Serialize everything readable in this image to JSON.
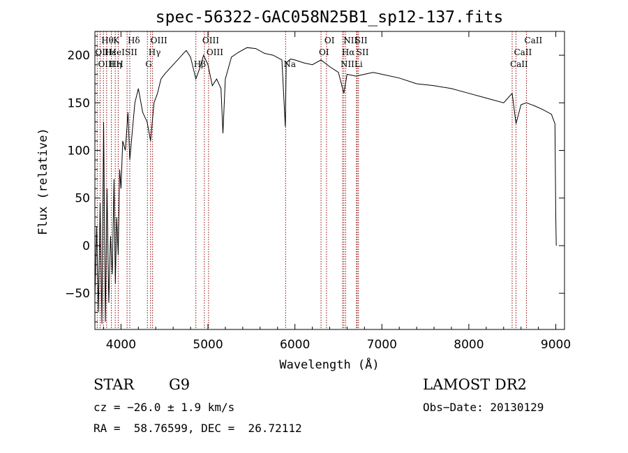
{
  "chart_data": {
    "type": "line",
    "title": "spec-56322-GAC058N25B1_sp12-137.fits",
    "xlabel": "Wavelength (Å)",
    "ylabel": "Flux (relative)",
    "xlim": [
      3700,
      9100
    ],
    "ylim": [
      -88,
      225
    ],
    "xticks": [
      4000,
      5000,
      6000,
      7000,
      8000,
      9000
    ],
    "yticks": [
      -50,
      0,
      50,
      100,
      150,
      200
    ],
    "grid": false,
    "legend": "none",
    "line_color": "#000000",
    "marker_color": "#8b0000",
    "series": [
      {
        "x": [
          3700,
          3720,
          3740,
          3760,
          3780,
          3800,
          3820,
          3840,
          3860,
          3880,
          3900,
          3920,
          3935,
          3950,
          3968,
          3985,
          4000,
          4020,
          4050,
          4080,
          4101,
          4130,
          4160,
          4200,
          4250,
          4300,
          4340,
          4380,
          4420,
          4460,
          4500,
          4550,
          4600,
          4650,
          4700,
          4750,
          4800,
          4861,
          4900,
          4950,
          5000,
          5050,
          5100,
          5150,
          5172,
          5200,
          5270,
          5350,
          5450,
          5550,
          5650,
          5750,
          5850,
          5890,
          5900,
          5950,
          6000,
          6100,
          6200,
          6300,
          6400,
          6500,
          6563,
          6600,
          6700,
          6800,
          6900,
          7000,
          7200,
          7400,
          7600,
          7800,
          8000,
          8200,
          8400,
          8498,
          8542,
          8600,
          8662,
          8750,
          8850,
          8950,
          8990,
          9000,
          9005
        ],
        "y": [
          -55,
          20,
          -70,
          45,
          -82,
          130,
          -80,
          60,
          -60,
          10,
          -30,
          70,
          -40,
          30,
          -10,
          80,
          60,
          110,
          100,
          140,
          90,
          120,
          150,
          165,
          140,
          130,
          110,
          150,
          160,
          175,
          180,
          185,
          190,
          195,
          200,
          205,
          198,
          175,
          185,
          200,
          190,
          168,
          175,
          165,
          118,
          175,
          198,
          203,
          208,
          207,
          202,
          200,
          195,
          125,
          192,
          196,
          195,
          192,
          190,
          195,
          188,
          182,
          160,
          180,
          178,
          180,
          182,
          180,
          176,
          170,
          168,
          165,
          160,
          155,
          150,
          160,
          128,
          148,
          150,
          147,
          143,
          138,
          128,
          30,
          0
        ]
      }
    ],
    "lines": [
      {
        "label": "Hθ",
        "wavelength": 3798,
        "row": 1
      },
      {
        "label": "OII",
        "wavelength": 3727,
        "row": 2
      },
      {
        "label": "OIII",
        "wavelength": 3760,
        "row": 3
      },
      {
        "label": "Hε",
        "wavelength": 3835,
        "row": 2
      },
      {
        "label": "Hη",
        "wavelength": 3889,
        "row": 3
      },
      {
        "label": "K",
        "wavelength": 3934,
        "row": 1
      },
      {
        "label": "HeI",
        "wavelength": 3889,
        "row": 2
      },
      {
        "label": "SII",
        "wavelength": 4070,
        "row": 2
      },
      {
        "label": "H",
        "wavelength": 3968,
        "row": 3
      },
      {
        "label": "Hδ",
        "wavelength": 4101,
        "row": 1
      },
      {
        "label": "OIII",
        "wavelength": 4363,
        "row": 1
      },
      {
        "label": "Hγ",
        "wavelength": 4340,
        "row": 2
      },
      {
        "label": "G",
        "wavelength": 4304,
        "row": 3
      },
      {
        "label": "OIII",
        "wavelength": 4959,
        "row": 1
      },
      {
        "label": "OIII",
        "wavelength": 5007,
        "row": 2
      },
      {
        "label": "Hβ",
        "wavelength": 4861,
        "row": 3
      },
      {
        "label": "Na",
        "wavelength": 5893,
        "row": 3
      },
      {
        "label": "OI",
        "wavelength": 6363,
        "row": 1
      },
      {
        "label": "OI",
        "wavelength": 6300,
        "row": 2
      },
      {
        "label": "NII",
        "wavelength": 6583,
        "row": 1
      },
      {
        "label": "SII",
        "wavelength": 6716,
        "row": 1
      },
      {
        "label": "Hα",
        "wavelength": 6563,
        "row": 2
      },
      {
        "label": "SII",
        "wavelength": 6731,
        "row": 2
      },
      {
        "label": "NII",
        "wavelength": 6548,
        "row": 3
      },
      {
        "label": "Li",
        "wavelength": 6708,
        "row": 3
      },
      {
        "label": "CaII",
        "wavelength": 8662,
        "row": 1
      },
      {
        "label": "CaII",
        "wavelength": 8542,
        "row": 2
      },
      {
        "label": "CaII",
        "wavelength": 8498,
        "row": 3
      }
    ]
  },
  "info": {
    "object_class": "STAR",
    "subclass": "G9",
    "survey": "LAMOST DR2",
    "cz": "cz = −26.0 ± 1.9 km/s",
    "obs_date": "Obs−Date: 20130129",
    "coords": "RA =  58.76599, DEC =  26.72112"
  }
}
